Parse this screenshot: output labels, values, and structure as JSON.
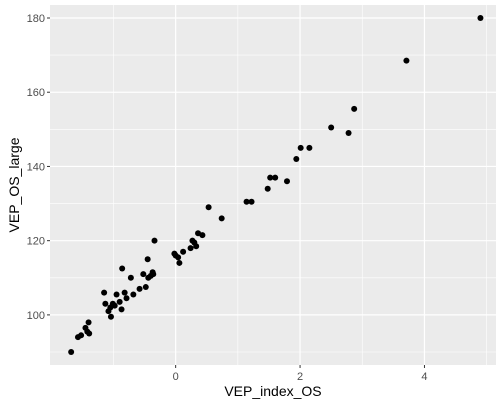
{
  "chart_data": {
    "type": "scatter",
    "title": "",
    "xlabel": "VEP_index_OS",
    "ylabel": "VEP_OS_large",
    "xlim": [
      -2.02,
      5.15
    ],
    "ylim": [
      86.5,
      183.5
    ],
    "xticks": [
      0,
      2,
      4
    ],
    "yticks": [
      100,
      120,
      140,
      160,
      180
    ],
    "grid": true,
    "colors": {
      "panel": "#EBEBEB",
      "grid_major": "#FFFFFF",
      "point": "#000000",
      "tick": "#4D4D4D"
    },
    "points": [
      {
        "x": -1.68,
        "y": 90.0
      },
      {
        "x": -1.57,
        "y": 94.0
      },
      {
        "x": -1.52,
        "y": 94.5
      },
      {
        "x": -1.45,
        "y": 96.5
      },
      {
        "x": -1.42,
        "y": 95.5
      },
      {
        "x": -1.39,
        "y": 95.0
      },
      {
        "x": -1.4,
        "y": 98.0
      },
      {
        "x": -1.15,
        "y": 106.0
      },
      {
        "x": -1.13,
        "y": 103.0
      },
      {
        "x": -1.08,
        "y": 101.0
      },
      {
        "x": -1.04,
        "y": 99.5
      },
      {
        "x": -1.05,
        "y": 102.0
      },
      {
        "x": -1.01,
        "y": 103.0
      },
      {
        "x": -0.98,
        "y": 102.5
      },
      {
        "x": -0.95,
        "y": 105.5
      },
      {
        "x": -0.9,
        "y": 103.5
      },
      {
        "x": -0.87,
        "y": 101.5
      },
      {
        "x": -0.86,
        "y": 112.5
      },
      {
        "x": -0.82,
        "y": 106.0
      },
      {
        "x": -0.79,
        "y": 104.5
      },
      {
        "x": -0.72,
        "y": 110.0
      },
      {
        "x": -0.68,
        "y": 105.5
      },
      {
        "x": -0.58,
        "y": 107.0
      },
      {
        "x": -0.52,
        "y": 111.0
      },
      {
        "x": -0.48,
        "y": 107.5
      },
      {
        "x": -0.45,
        "y": 115.0
      },
      {
        "x": -0.44,
        "y": 110.0
      },
      {
        "x": -0.4,
        "y": 110.5
      },
      {
        "x": -0.37,
        "y": 111.5
      },
      {
        "x": -0.36,
        "y": 111.0
      },
      {
        "x": -0.34,
        "y": 120.0
      },
      {
        "x": -0.02,
        "y": 116.5
      },
      {
        "x": 0.0,
        "y": 116.0
      },
      {
        "x": 0.04,
        "y": 115.5
      },
      {
        "x": 0.06,
        "y": 114.0
      },
      {
        "x": 0.12,
        "y": 117.0
      },
      {
        "x": 0.24,
        "y": 118.0
      },
      {
        "x": 0.27,
        "y": 120.0
      },
      {
        "x": 0.3,
        "y": 119.5
      },
      {
        "x": 0.33,
        "y": 118.5
      },
      {
        "x": 0.36,
        "y": 122.0
      },
      {
        "x": 0.43,
        "y": 121.5
      },
      {
        "x": 0.53,
        "y": 129.0
      },
      {
        "x": 0.74,
        "y": 126.0
      },
      {
        "x": 1.14,
        "y": 130.5
      },
      {
        "x": 1.22,
        "y": 130.5
      },
      {
        "x": 1.48,
        "y": 134.0
      },
      {
        "x": 1.52,
        "y": 137.0
      },
      {
        "x": 1.6,
        "y": 137.0
      },
      {
        "x": 1.79,
        "y": 136.0
      },
      {
        "x": 1.94,
        "y": 142.0
      },
      {
        "x": 2.01,
        "y": 145.0
      },
      {
        "x": 2.15,
        "y": 145.0
      },
      {
        "x": 2.5,
        "y": 150.5
      },
      {
        "x": 2.78,
        "y": 149.0
      },
      {
        "x": 2.87,
        "y": 155.5
      },
      {
        "x": 3.71,
        "y": 168.5
      },
      {
        "x": 4.9,
        "y": 180.0
      }
    ]
  }
}
